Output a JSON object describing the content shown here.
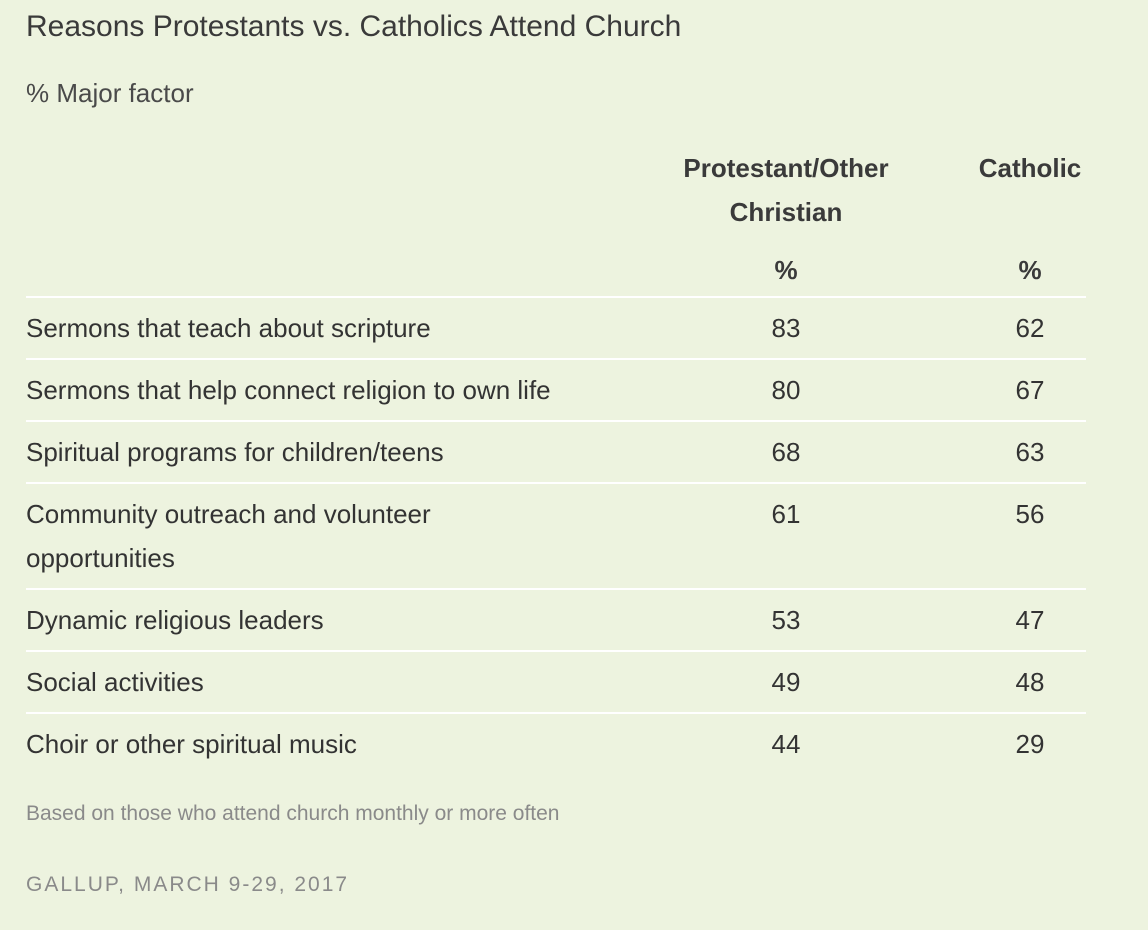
{
  "chart_data": {
    "type": "table",
    "title": "Reasons Protestants vs. Catholics Attend Church",
    "subtitle": "% Major factor",
    "columns": [
      {
        "name": "Protestant/Other Christian",
        "unit": "%"
      },
      {
        "name": "Catholic",
        "unit": "%"
      }
    ],
    "rows": [
      {
        "label": "Sermons that teach about scripture",
        "values": [
          83,
          62
        ]
      },
      {
        "label": "Sermons that help connect religion to own life",
        "values": [
          80,
          67
        ]
      },
      {
        "label": "Spiritual programs for children/teens",
        "values": [
          68,
          63
        ]
      },
      {
        "label": "Community outreach and volunteer opportunities",
        "values": [
          61,
          56
        ]
      },
      {
        "label": "Dynamic religious leaders",
        "values": [
          53,
          47
        ]
      },
      {
        "label": "Social activities",
        "values": [
          49,
          48
        ]
      },
      {
        "label": "Choir or other spiritual music",
        "values": [
          44,
          29
        ]
      }
    ],
    "note": "Based on those who attend church monthly or more often",
    "source": "GALLUP, MARCH 9-29, 2017"
  },
  "colors": {
    "background": "#edf3df",
    "row_divider": "#ffffff",
    "text": "#333333",
    "muted_text": "#8a8a8a"
  }
}
